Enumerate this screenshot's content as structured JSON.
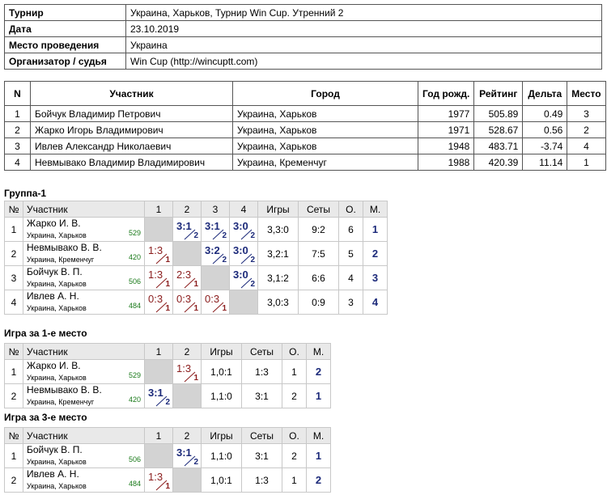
{
  "info": {
    "rows": [
      [
        "Турнир",
        "Украина, Харьков, Турнир Win Cup. Утренний 2"
      ],
      [
        "Дата",
        "23.10.2019"
      ],
      [
        "Место проведения",
        "Украина"
      ],
      [
        "Организатор / судья",
        "Win Cup (http://wincuptt.com)"
      ]
    ]
  },
  "participants": {
    "headers": [
      "N",
      "Участник",
      "Город",
      "Год рожд.",
      "Рейтинг",
      "Дельта",
      "Место"
    ],
    "rows": [
      [
        "1",
        "Бойчук Владимир Петрович",
        "Украина, Харьков",
        "1977",
        "505.89",
        "0.49",
        "3"
      ],
      [
        "2",
        "Жарко Игорь Владимирович",
        "Украина, Харьков",
        "1971",
        "528.67",
        "0.56",
        "2"
      ],
      [
        "3",
        "Ивлев Александр Николаевич",
        "Украина, Харьков",
        "1948",
        "483.71",
        "-3.74",
        "4"
      ],
      [
        "4",
        "Невмывако Владимир Владимирович",
        "Украина, Кременчуг",
        "1988",
        "420.39",
        "11.14",
        "1"
      ]
    ]
  },
  "groups": [
    {
      "title": "Группа-1",
      "headers": [
        "№",
        "Участник",
        "1",
        "2",
        "3",
        "4",
        "Игры",
        "Сеты",
        "О.",
        "М."
      ],
      "rows": [
        {
          "num": "1",
          "name": "Жарко И. В.",
          "city": "Украина, Харьков",
          "rating": "529",
          "cells": [
            null,
            {
              "score": "3:1",
              "pts": "2"
            },
            {
              "score": "3:1",
              "pts": "2"
            },
            {
              "score": "3:0",
              "pts": "2"
            }
          ],
          "games": "3,3:0",
          "sets": "9:2",
          "points": "6",
          "place": "1"
        },
        {
          "num": "2",
          "name": "Невмывако В. В.",
          "city": "Украина, Кременчуг",
          "rating": "420",
          "cells": [
            {
              "score": "1:3",
              "pts": "1"
            },
            null,
            {
              "score": "3:2",
              "pts": "2"
            },
            {
              "score": "3:0",
              "pts": "2"
            }
          ],
          "games": "3,2:1",
          "sets": "7:5",
          "points": "5",
          "place": "2"
        },
        {
          "num": "3",
          "name": "Бойчук В. П.",
          "city": "Украина, Харьков",
          "rating": "506",
          "cells": [
            {
              "score": "1:3",
              "pts": "1"
            },
            {
              "score": "2:3",
              "pts": "1"
            },
            null,
            {
              "score": "3:0",
              "pts": "2"
            }
          ],
          "games": "3,1:2",
          "sets": "6:6",
          "points": "4",
          "place": "3"
        },
        {
          "num": "4",
          "name": "Ивлев А. Н.",
          "city": "Украина, Харьков",
          "rating": "484",
          "cells": [
            {
              "score": "0:3",
              "pts": "1"
            },
            {
              "score": "0:3",
              "pts": "1"
            },
            {
              "score": "0:3",
              "pts": "1"
            },
            null
          ],
          "games": "3,0:3",
          "sets": "0:9",
          "points": "3",
          "place": "4"
        }
      ]
    },
    {
      "title": "Игра за 1-е место",
      "headers": [
        "№",
        "Участник",
        "1",
        "2",
        "Игры",
        "Сеты",
        "О.",
        "М."
      ],
      "rows": [
        {
          "num": "1",
          "name": "Жарко И. В.",
          "city": "Украина, Харьков",
          "rating": "529",
          "cells": [
            null,
            {
              "score": "1:3",
              "pts": "1"
            }
          ],
          "games": "1,0:1",
          "sets": "1:3",
          "points": "1",
          "place": "2"
        },
        {
          "num": "2",
          "name": "Невмывако В. В.",
          "city": "Украина, Кременчуг",
          "rating": "420",
          "cells": [
            {
              "score": "3:1",
              "pts": "2"
            },
            null
          ],
          "games": "1,1:0",
          "sets": "3:1",
          "points": "2",
          "place": "1"
        }
      ]
    },
    {
      "title": "Игра за 3-е место",
      "headers": [
        "№",
        "Участник",
        "1",
        "2",
        "Игры",
        "Сеты",
        "О.",
        "М."
      ],
      "rows": [
        {
          "num": "1",
          "name": "Бойчук В. П.",
          "city": "Украина, Харьков",
          "rating": "506",
          "cells": [
            null,
            {
              "score": "3:1",
              "pts": "2"
            }
          ],
          "games": "1,1:0",
          "sets": "3:1",
          "points": "2",
          "place": "1"
        },
        {
          "num": "2",
          "name": "Ивлев А. Н.",
          "city": "Украина, Харьков",
          "rating": "484",
          "cells": [
            {
              "score": "1:3",
              "pts": "1"
            },
            null
          ],
          "games": "1,0:1",
          "sets": "1:3",
          "points": "1",
          "place": "2"
        }
      ]
    }
  ]
}
